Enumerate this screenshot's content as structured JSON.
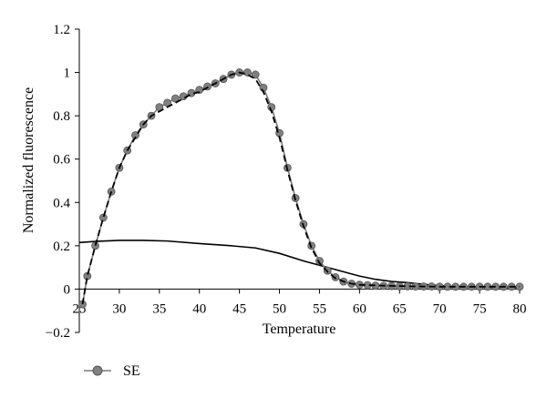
{
  "chart_data": {
    "type": "line",
    "xlabel": "Temperature",
    "ylabel": "Normalized fluorescence",
    "xlim": [
      25,
      80
    ],
    "ylim": [
      -0.2,
      1.2
    ],
    "x_ticks": [
      "25",
      "30",
      "35",
      "40",
      "45",
      "50",
      "55",
      "60",
      "65",
      "70",
      "75",
      "80"
    ],
    "y_ticks": [
      "−0.2",
      "0",
      "0.2",
      "0.4",
      "0.6",
      "0.8",
      "1",
      "1.2"
    ],
    "grid": false,
    "legend": {
      "position": "bottom-left",
      "entries": [
        "SE"
      ]
    },
    "series": [
      {
        "name": "SE",
        "style": "gray line with gray circle markers",
        "color": "#7a7a7a",
        "x": [
          25.4,
          26,
          27,
          28,
          29,
          30,
          31,
          32,
          33,
          34,
          35,
          36,
          37,
          38,
          39,
          40,
          41,
          42,
          43,
          44,
          45,
          46,
          47,
          48,
          49,
          50,
          51,
          52,
          53,
          54,
          55,
          56,
          57,
          58,
          59,
          60,
          61,
          62,
          63,
          64,
          65,
          66,
          67,
          68,
          69,
          70,
          71,
          72,
          73,
          74,
          75,
          76,
          77,
          78,
          79,
          80
        ],
        "values": [
          -0.07,
          0.06,
          0.2,
          0.33,
          0.45,
          0.56,
          0.64,
          0.71,
          0.76,
          0.8,
          0.84,
          0.86,
          0.88,
          0.89,
          0.905,
          0.92,
          0.935,
          0.95,
          0.97,
          0.99,
          1.0,
          1.0,
          0.99,
          0.93,
          0.84,
          0.72,
          0.56,
          0.42,
          0.3,
          0.2,
          0.13,
          0.085,
          0.055,
          0.035,
          0.025,
          0.02,
          0.018,
          0.016,
          0.015,
          0.014,
          0.013,
          0.013,
          0.012,
          0.012,
          0.012,
          0.011,
          0.011,
          0.011,
          0.011,
          0.011,
          0.011,
          0.011,
          0.011,
          0.011,
          0.011,
          0.011
        ]
      },
      {
        "style": "black dashed line",
        "color": "#000000",
        "x": [
          25.4,
          26,
          27,
          28,
          29,
          30,
          31,
          32,
          33,
          34,
          35,
          36,
          37,
          38,
          39,
          40,
          41,
          42,
          43,
          44,
          45,
          46,
          47,
          48,
          49,
          50,
          51,
          52,
          53,
          54,
          55,
          56,
          57,
          58,
          59,
          60,
          62,
          64,
          66,
          68,
          70,
          72,
          74,
          76,
          78,
          80
        ],
        "values": [
          -0.07,
          0.06,
          0.2,
          0.33,
          0.45,
          0.56,
          0.64,
          0.7,
          0.76,
          0.8,
          0.82,
          0.84,
          0.86,
          0.88,
          0.9,
          0.91,
          0.93,
          0.95,
          0.97,
          0.99,
          1.0,
          0.99,
          0.97,
          0.91,
          0.82,
          0.7,
          0.55,
          0.41,
          0.29,
          0.19,
          0.12,
          0.08,
          0.05,
          0.035,
          0.025,
          0.02,
          0.017,
          0.015,
          0.013,
          0.012,
          0.011,
          0.011,
          0.011,
          0.011,
          0.011,
          0.011
        ]
      },
      {
        "style": "black solid line",
        "color": "#000000",
        "x": [
          25,
          27,
          30,
          33,
          36,
          40,
          44,
          47,
          50,
          53,
          56,
          58,
          60,
          62,
          64,
          66,
          68,
          70,
          72,
          75,
          78,
          80
        ],
        "values": [
          0.215,
          0.22,
          0.225,
          0.225,
          0.222,
          0.21,
          0.2,
          0.19,
          0.165,
          0.13,
          0.1,
          0.08,
          0.06,
          0.045,
          0.035,
          0.03,
          0.022,
          0.016,
          0.012,
          0.01,
          0.008,
          0.006
        ]
      }
    ]
  }
}
